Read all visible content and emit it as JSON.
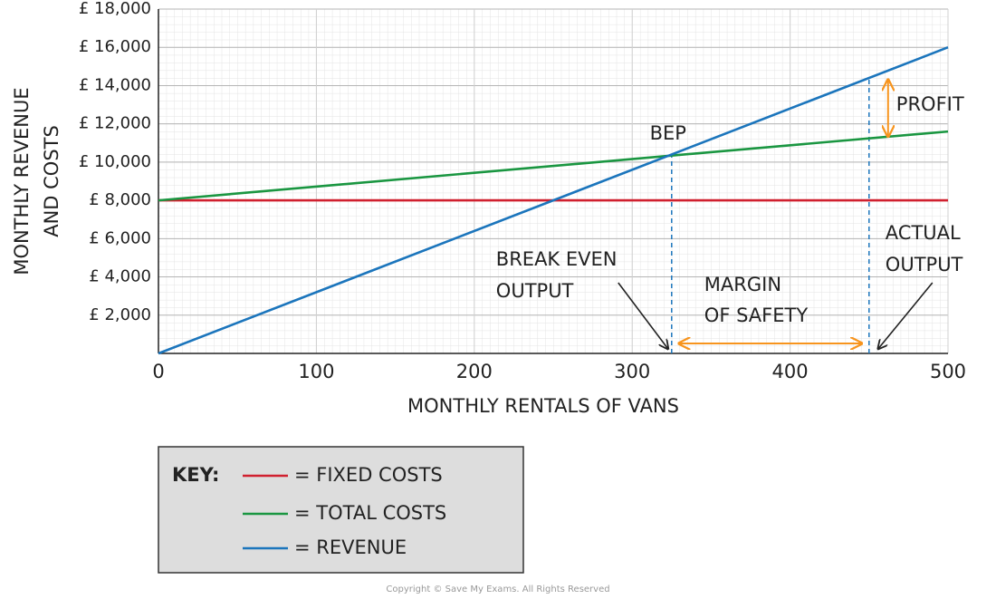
{
  "chart_data": {
    "type": "line",
    "xlabel": "MONTHLY RENTALS OF VANS",
    "ylabel": [
      "MONTHLY REVENUE",
      "AND COSTS"
    ],
    "x": [
      0,
      500
    ],
    "series": [
      {
        "name": "= FIXED COSTS",
        "color": "#d0202f",
        "values": [
          8000,
          8000
        ]
      },
      {
        "name": "= TOTAL COSTS",
        "color": "#1a9641",
        "values": [
          8000,
          11600
        ]
      },
      {
        "name": "= REVENUE",
        "color": "#1b75bc",
        "values": [
          0,
          16000
        ]
      }
    ],
    "xlim": [
      0,
      500
    ],
    "ylim": [
      0,
      18000
    ],
    "xticks": [
      0,
      100,
      200,
      300,
      400,
      500
    ],
    "yticks": [
      {
        "value": 2000,
        "label": "£ 2,000"
      },
      {
        "value": 4000,
        "label": "£ 4,000"
      },
      {
        "value": 6000,
        "label": "£ 6,000"
      },
      {
        "value": 8000,
        "label": "£ 8,000"
      },
      {
        "value": 10000,
        "label": "£ 10,000"
      },
      {
        "value": 12000,
        "label": "£ 12,000"
      },
      {
        "value": 14000,
        "label": "£ 14,000"
      },
      {
        "value": 16000,
        "label": "£ 16,000"
      },
      {
        "value": 18000,
        "label": "£ 18,000"
      }
    ],
    "grid": true,
    "legend_title": "KEY:",
    "break_even": {
      "label": "BEP",
      "x": 325,
      "y": 10400,
      "note": [
        "BREAK EVEN",
        "OUTPUT"
      ]
    },
    "actual_output": {
      "x": 450,
      "y": 14400,
      "note": [
        "ACTUAL",
        "OUTPUT"
      ]
    },
    "margin_of_safety": {
      "note": [
        "MARGIN",
        "OF SAFETY"
      ],
      "color": "#f7941d"
    },
    "profit": {
      "label": "PROFIT",
      "from": 11240,
      "to": 14400,
      "color": "#f7941d"
    },
    "copyright": "Copyright © Save My Exams. All Rights Reserved"
  }
}
